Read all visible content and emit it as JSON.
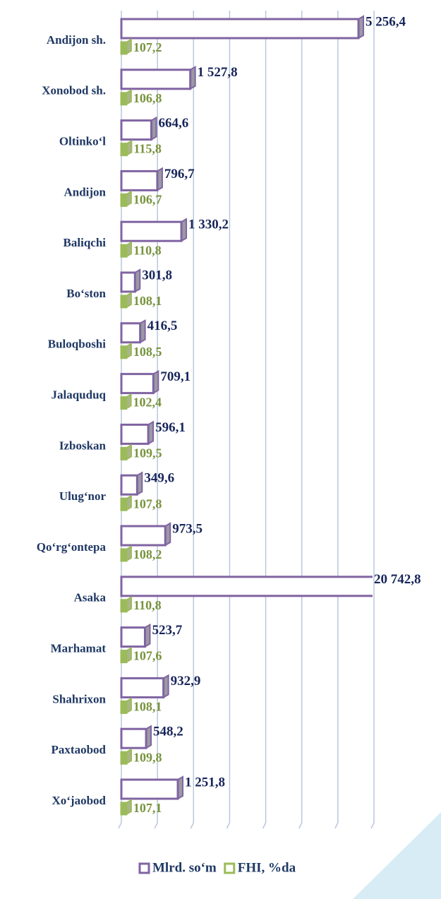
{
  "chart_data": {
    "type": "bar",
    "orientation": "horizontal",
    "categories": [
      "Andijon sh.",
      "Xonobod sh.",
      "Oltinko‘l",
      "Andijon",
      "Baliqchi",
      "Bo‘ston",
      "Buloqboshi",
      "Jalaquduq",
      "Izboskan",
      "Ulug‘nor",
      "Qo‘rg‘ontepa",
      "Asaka",
      "Marhamat",
      "Shahrixon",
      "Paxtaobod",
      "Xo‘jaobod"
    ],
    "series": [
      {
        "name": "Mlrd. so‘m",
        "color": "#8064a2",
        "values": [
          5256.4,
          1527.8,
          664.6,
          796.7,
          1330.2,
          301.8,
          416.5,
          709.1,
          596.1,
          349.6,
          973.5,
          20742.8,
          523.7,
          932.9,
          548.2,
          1251.8
        ],
        "value_labels": [
          "5 256,4",
          "1 527,8",
          "664,6",
          "796,7",
          "1 330,2",
          "301,8",
          "416,5",
          "709,1",
          "596,1",
          "349,6",
          "973,5",
          "20 742,8",
          "523,7",
          "932,9",
          "548,2",
          "1 251,8"
        ]
      },
      {
        "name": "FHI, %da",
        "color": "#9bbb59",
        "values": [
          107.2,
          106.8,
          115.8,
          106.7,
          110.8,
          108.1,
          108.5,
          102.4,
          109.5,
          107.8,
          108.2,
          110.8,
          107.6,
          108.1,
          109.8,
          107.1
        ],
        "value_labels": [
          "107,2",
          "106,8",
          "115,8",
          "106,7",
          "110,8",
          "108,1",
          "108,5",
          "102,4",
          "109,5",
          "107,8",
          "108,2",
          "110,8",
          "107,6",
          "108,1",
          "109,8",
          "107,1"
        ]
      }
    ],
    "xlim": [
      0,
      5600
    ],
    "xticks": [
      0,
      800,
      1600,
      2400,
      3200,
      4000,
      4800,
      5600
    ],
    "grid": true,
    "legend": "bottom"
  }
}
